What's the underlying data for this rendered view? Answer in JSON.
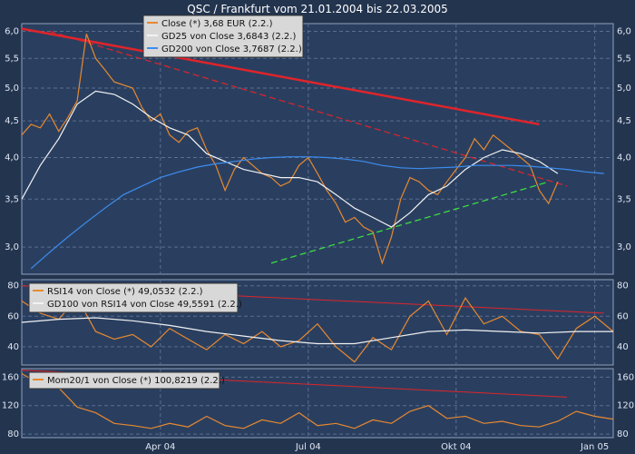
{
  "chart_data": {
    "type": "line",
    "title": "QSC / Frankfurt vom 21.01.2004  bis 22.03.2005",
    "x_ticks": [
      "Apr 04",
      "Jul 04",
      "Okt 04",
      "Jan 05"
    ],
    "colors": {
      "background": "#23344f",
      "plot_bg": "#2a3f60",
      "close": "#e8892f",
      "gd25": "#f2f2f2",
      "gd200": "#3d8df0",
      "resistance": "#e0242a",
      "support": "#3ee63e"
    },
    "panels": [
      {
        "name": "price",
        "ylim": [
          2.75,
          6.15
        ],
        "y_ticks": [
          "6,0",
          "5,5",
          "5,0",
          "4,5",
          "4,0",
          "3,5",
          "3,0"
        ],
        "y_tick_values": [
          6.0,
          5.5,
          5.0,
          4.5,
          4.0,
          3.5,
          3.0
        ],
        "log_scale": true,
        "legend": [
          "Close (*) 3,68 EUR (2.2.)",
          "GD25 von Close 3,6843 (2.2.)",
          "GD200 von Close 3,7687 (2.2.)"
        ],
        "series": [
          {
            "name": "Close (*) 3,68 EUR (2.2.)",
            "color": "#e8892f",
            "x": [
              0,
              1,
              2,
              3,
              4,
              5,
              6,
              7,
              8,
              9,
              10,
              11,
              12,
              13,
              14,
              15,
              16,
              17,
              18,
              19,
              20,
              21,
              22,
              23,
              24,
              25,
              26,
              27,
              28,
              29,
              30,
              31,
              32,
              33,
              34,
              35,
              36,
              37,
              38,
              39,
              40,
              41,
              42,
              43,
              44,
              45,
              46,
              47,
              48,
              49,
              50,
              51,
              52,
              53,
              54,
              55,
              56,
              57,
              58
            ],
            "y": [
              4.3,
              4.45,
              4.4,
              4.6,
              4.35,
              4.55,
              4.8,
              5.95,
              5.5,
              5.3,
              5.1,
              5.05,
              5.0,
              4.7,
              4.5,
              4.6,
              4.3,
              4.2,
              4.35,
              4.4,
              4.1,
              3.9,
              3.6,
              3.85,
              4.0,
              3.9,
              3.8,
              3.75,
              3.65,
              3.7,
              3.9,
              4.0,
              3.8,
              3.6,
              3.45,
              3.25,
              3.3,
              3.2,
              3.15,
              2.85,
              3.1,
              3.5,
              3.75,
              3.7,
              3.6,
              3.55,
              3.7,
              3.85,
              4.0,
              4.25,
              4.1,
              4.3,
              4.2,
              4.1,
              4.0,
              3.9,
              3.6,
              3.45,
              3.7
            ]
          },
          {
            "name": "GD25 von Close 3,6843 (2.2.)",
            "color": "#f2f2f2",
            "x": [
              0,
              2,
              4,
              6,
              8,
              10,
              12,
              14,
              16,
              18,
              20,
              22,
              24,
              26,
              28,
              30,
              32,
              34,
              36,
              38,
              40,
              42,
              44,
              46,
              48,
              50,
              52,
              54,
              56,
              58
            ],
            "y": [
              3.5,
              3.9,
              4.25,
              4.75,
              4.95,
              4.9,
              4.75,
              4.55,
              4.4,
              4.3,
              4.05,
              3.95,
              3.85,
              3.8,
              3.75,
              3.75,
              3.7,
              3.55,
              3.4,
              3.3,
              3.2,
              3.35,
              3.55,
              3.65,
              3.85,
              4.0,
              4.1,
              4.05,
              3.95,
              3.8
            ]
          },
          {
            "name": "GD200 von Close 3,7687 (2.2.)",
            "color": "#3d8df0",
            "x": [
              1,
              3,
              5,
              7,
              9,
              11,
              13,
              15,
              17,
              19,
              21,
              23,
              25,
              27,
              29,
              31,
              33,
              35,
              37,
              39,
              41,
              43,
              45,
              47,
              49,
              51,
              53,
              55,
              57,
              59,
              61,
              63
            ],
            "y": [
              2.8,
              2.95,
              3.1,
              3.25,
              3.4,
              3.55,
              3.65,
              3.75,
              3.82,
              3.88,
              3.92,
              3.95,
              3.98,
              4.0,
              4.01,
              4.01,
              4.0,
              3.98,
              3.95,
              3.9,
              3.87,
              3.86,
              3.87,
              3.88,
              3.9,
              3.9,
              3.9,
              3.89,
              3.87,
              3.85,
              3.82,
              3.8
            ]
          }
        ]
      },
      {
        "name": "rsi",
        "ylim": [
          28,
          84
        ],
        "y_ticks": [
          "80",
          "60",
          "40"
        ],
        "y_tick_values": [
          80,
          60,
          40
        ],
        "legend": [
          "RSI14 von Close (*) 49,0532 (2.2.)",
          "GD100 von RSI14 von Close 49,5591 (2.2.)"
        ],
        "series": [
          {
            "name": "RSI14 von Close (*) 49,0532 (2.2.)",
            "color": "#e8892f",
            "x": [
              0,
              2,
              4,
              6,
              8,
              10,
              12,
              14,
              16,
              18,
              20,
              22,
              24,
              26,
              28,
              30,
              32,
              34,
              36,
              38,
              40,
              42,
              44,
              46,
              48,
              50,
              52,
              54,
              56,
              58,
              60,
              62,
              64
            ],
            "y": [
              70,
              62,
              58,
              72,
              50,
              45,
              48,
              40,
              52,
              45,
              38,
              48,
              42,
              50,
              40,
              44,
              55,
              40,
              30,
              46,
              38,
              60,
              70,
              48,
              72,
              55,
              60,
              50,
              48,
              32,
              52,
              60,
              50
            ]
          },
          {
            "name": "GD100 von RSI14 von Close 49,5591 (2.2.)",
            "color": "#f2f2f2",
            "x": [
              0,
              4,
              8,
              12,
              16,
              20,
              24,
              28,
              32,
              36,
              40,
              44,
              48,
              52,
              56,
              60,
              64
            ],
            "y": [
              56,
              58,
              59,
              57,
              54,
              50,
              47,
              44,
              42,
              42,
              46,
              50,
              51,
              50,
              49,
              50,
              50
            ]
          }
        ]
      },
      {
        "name": "momentum",
        "ylim": [
          75,
          172
        ],
        "y_ticks": [
          "160",
          "120",
          "80"
        ],
        "y_tick_values": [
          160,
          120,
          80
        ],
        "legend": [
          "Mom20/1 von Close (*) 100,8219 (2.2.)"
        ],
        "series": [
          {
            "name": "Mom20/1 von Close (*) 100,8219 (2.2.)",
            "color": "#e8892f",
            "x": [
              0,
              2,
              4,
              6,
              8,
              10,
              12,
              14,
              16,
              18,
              20,
              22,
              24,
              26,
              28,
              30,
              32,
              34,
              36,
              38,
              40,
              42,
              44,
              46,
              48,
              50,
              52,
              54,
              56,
              58,
              60,
              62,
              64
            ],
            "y": [
              165,
              150,
              145,
              118,
              110,
              95,
              92,
              88,
              95,
              90,
              105,
              92,
              88,
              100,
              95,
              110,
              92,
              95,
              88,
              100,
              95,
              112,
              120,
              102,
              105,
              95,
              98,
              92,
              90,
              98,
              112,
              105,
              101
            ]
          }
        ]
      }
    ]
  }
}
